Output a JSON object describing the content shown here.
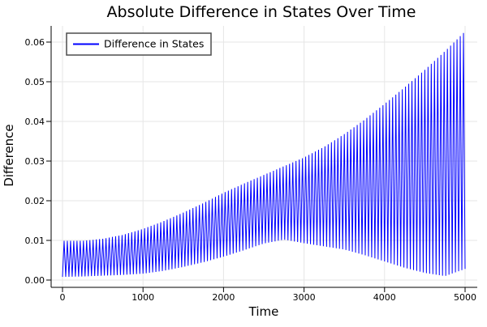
{
  "chart_data": {
    "type": "line",
    "title": "Absolute Difference in States Over Time",
    "xlabel": "Time",
    "ylabel": "Difference",
    "xlim": [
      -140,
      5160
    ],
    "ylim": [
      -0.0018,
      0.0641
    ],
    "xticks": [
      0,
      1000,
      2000,
      3000,
      4000,
      5000
    ],
    "xtick_labels": [
      "0",
      "1000",
      "2000",
      "3000",
      "4000",
      "5000"
    ],
    "yticks": [
      0,
      0.01,
      0.02,
      0.03,
      0.04,
      0.05,
      0.06
    ],
    "ytick_labels": [
      "0.00",
      "0.01",
      "0.02",
      "0.03",
      "0.04",
      "0.05",
      "0.06"
    ],
    "grid": true,
    "legend": {
      "position": "top-left",
      "entries": [
        "Difference in States"
      ]
    },
    "series": [
      {
        "name": "Difference in States",
        "color": "#0000ff",
        "waveform": "rectified fast oscillation bouncing between a lower and an upper envelope",
        "oscillation_period": 40,
        "envelope_t": [
          0,
          250,
          500,
          750,
          1000,
          1250,
          1500,
          1750,
          2000,
          2250,
          2500,
          2750,
          3000,
          3250,
          3500,
          3750,
          4000,
          4250,
          4500,
          4750,
          5000
        ],
        "upper_envelope": [
          0.0099,
          0.0099,
          0.0104,
          0.0114,
          0.0129,
          0.0148,
          0.017,
          0.0194,
          0.022,
          0.0243,
          0.0265,
          0.0287,
          0.0309,
          0.0336,
          0.0368,
          0.0404,
          0.0444,
          0.0486,
          0.053,
          0.0577,
          0.0627
        ],
        "lower_envelope": [
          0.0008,
          0.0009,
          0.0011,
          0.0013,
          0.0016,
          0.0023,
          0.0033,
          0.0045,
          0.0059,
          0.0075,
          0.0092,
          0.0102,
          0.0093,
          0.0085,
          0.0077,
          0.0063,
          0.0047,
          0.0031,
          0.0018,
          0.001,
          0.0028
        ]
      }
    ]
  },
  "colors": {
    "line": "#0000ff",
    "grid": "#e6e6e6",
    "axis": "#000000",
    "legend_border": "#4d4d4d",
    "background": "#ffffff"
  }
}
